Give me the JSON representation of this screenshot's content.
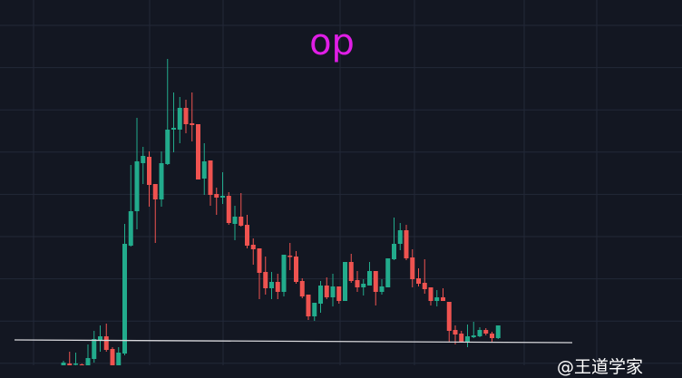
{
  "chart_data": {
    "type": "candlestick",
    "title": "op",
    "xlabel": "",
    "ylabel": "",
    "grid": true,
    "colors": {
      "background": "#131722",
      "up": "#22ab8c",
      "down": "#ef5350",
      "grid": "#232838",
      "title": "#e01ee6",
      "support_line": "#d8d8dc"
    },
    "candles": [
      [
        17,
        22,
        16,
        20
      ],
      [
        19,
        32,
        16,
        17
      ],
      [
        18,
        31,
        16,
        19
      ],
      [
        18,
        19,
        16,
        17
      ],
      [
        17,
        40,
        16,
        25
      ],
      [
        24,
        55,
        20,
        46
      ],
      [
        45,
        61,
        32,
        49
      ],
      [
        49,
        63,
        32,
        34
      ],
      [
        35,
        37,
        16,
        17
      ],
      [
        17,
        37,
        16,
        31
      ],
      [
        30,
        173,
        28,
        151
      ],
      [
        149,
        238,
        148,
        187
      ],
      [
        187,
        290,
        167,
        242
      ],
      [
        240,
        258,
        217,
        248
      ],
      [
        247,
        253,
        192,
        216
      ],
      [
        217,
        217,
        152,
        200
      ],
      [
        200,
        253,
        192,
        240
      ],
      [
        239,
        355,
        238,
        277
      ],
      [
        277,
        318,
        252,
        279
      ],
      [
        277,
        313,
        262,
        301
      ],
      [
        301,
        310,
        273,
        283
      ],
      [
        284,
        318,
        264,
        282
      ],
      [
        283,
        283,
        222,
        222
      ],
      [
        223,
        262,
        205,
        242
      ],
      [
        243,
        243,
        193,
        205
      ],
      [
        206,
        213,
        183,
        202
      ],
      [
        202,
        230,
        195,
        204
      ],
      [
        204,
        208,
        172,
        174
      ],
      [
        173,
        193,
        155,
        181
      ],
      [
        181,
        207,
        170,
        171
      ],
      [
        172,
        183,
        146,
        149
      ],
      [
        150,
        157,
        128,
        145
      ],
      [
        146,
        146,
        90,
        119
      ],
      [
        120,
        137,
        95,
        102
      ],
      [
        102,
        120,
        90,
        109
      ],
      [
        109,
        118,
        90,
        98
      ],
      [
        98,
        139,
        93,
        139
      ],
      [
        138,
        152,
        122,
        137
      ],
      [
        137,
        143,
        107,
        109
      ],
      [
        110,
        113,
        91,
        93
      ],
      [
        95,
        95,
        67,
        71
      ],
      [
        71,
        86,
        66,
        86
      ],
      [
        85,
        110,
        75,
        105
      ],
      [
        105,
        114,
        90,
        92
      ],
      [
        92,
        118,
        82,
        104
      ],
      [
        104,
        104,
        85,
        88
      ],
      [
        88,
        131,
        88,
        131
      ],
      [
        131,
        140,
        108,
        110
      ],
      [
        111,
        121,
        98,
        103
      ],
      [
        103,
        112,
        94,
        107
      ],
      [
        105,
        131,
        105,
        121
      ],
      [
        121,
        121,
        83,
        98
      ],
      [
        98,
        112,
        95,
        104
      ],
      [
        103,
        135,
        103,
        135
      ],
      [
        134,
        180,
        133,
        151
      ],
      [
        151,
        174,
        144,
        166
      ],
      [
        166,
        172,
        133,
        135
      ],
      [
        136,
        145,
        103,
        112
      ],
      [
        113,
        124,
        104,
        107
      ],
      [
        108,
        134,
        96,
        101
      ],
      [
        103,
        103,
        83,
        88
      ],
      [
        88,
        100,
        82,
        92
      ],
      [
        92,
        102,
        88,
        88
      ],
      [
        87,
        87,
        43,
        55
      ],
      [
        56,
        61,
        40,
        51
      ],
      [
        52,
        55,
        42,
        43
      ],
      [
        43,
        62,
        37,
        49
      ],
      [
        48,
        65,
        47,
        50
      ],
      [
        49,
        59,
        48,
        56
      ],
      [
        56,
        58,
        50,
        52
      ],
      [
        52,
        54,
        43,
        47
      ],
      [
        47,
        61,
        46,
        61
      ]
    ],
    "candle_fields": [
      "open",
      "high",
      "low",
      "close"
    ],
    "support_line": {
      "start_value": 45,
      "end_value": 42
    }
  },
  "watermark": "@王道学家"
}
